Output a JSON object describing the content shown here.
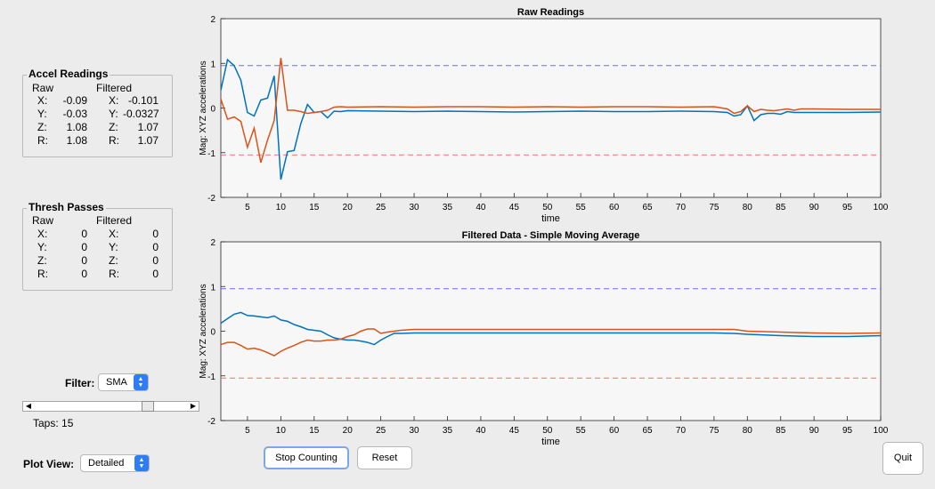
{
  "accel_panel": {
    "title": "Accel Readings",
    "raw_header": "Raw",
    "filtered_header": "Filtered",
    "rows": [
      {
        "label": "X:",
        "raw": "-0.09",
        "flabel": "X:",
        "filtered": "-0.101"
      },
      {
        "label": "Y:",
        "raw": "-0.03",
        "flabel": "Y:",
        "filtered": "-0.0327"
      },
      {
        "label": "Z:",
        "raw": "1.08",
        "flabel": "Z:",
        "filtered": "1.07"
      },
      {
        "label": "R:",
        "raw": "1.08",
        "flabel": "R:",
        "filtered": "1.07"
      }
    ]
  },
  "thresh_panel": {
    "title": "Thresh Passes",
    "raw_header": "Raw",
    "filtered_header": "Filtered",
    "rows": [
      {
        "label": "X:",
        "raw": "0",
        "flabel": "X:",
        "filtered": "0"
      },
      {
        "label": "Y:",
        "raw": "0",
        "flabel": "Y:",
        "filtered": "0"
      },
      {
        "label": "Z:",
        "raw": "0",
        "flabel": "Z:",
        "filtered": "0"
      },
      {
        "label": "R:",
        "raw": "0",
        "flabel": "R:",
        "filtered": "0"
      }
    ]
  },
  "filter": {
    "label": "Filter:",
    "value": "SMA"
  },
  "taps": {
    "label": "Taps: 15",
    "value": 15,
    "slider_fraction": 0.75
  },
  "plot_view": {
    "label": "Plot View:",
    "value": "Detailed"
  },
  "buttons": {
    "stop": "Stop Counting",
    "reset": "Reset",
    "quit": "Quit"
  },
  "colors": {
    "blue": "#0072bd",
    "orange": "#d95319",
    "upper_thresh": "#6b6bff",
    "lower_thresh": "#ff6b6b",
    "plot_bg": "#f7f7f7"
  },
  "chart_data": [
    {
      "type": "line",
      "title": "Raw Readings",
      "xlabel": "time",
      "ylabel": "Mag: XYZ accelerations",
      "xlim": [
        1,
        100
      ],
      "ylim": [
        -2,
        2
      ],
      "xticks": [
        5,
        10,
        15,
        20,
        25,
        30,
        35,
        40,
        45,
        50,
        55,
        60,
        65,
        70,
        75,
        80,
        85,
        90,
        95,
        100
      ],
      "yticks": [
        -2,
        -1,
        0,
        1,
        2
      ],
      "thresholds": [
        0.95,
        -1.05
      ],
      "series": [
        {
          "color": "#0072bd",
          "x": [
            1,
            2,
            3,
            4,
            5,
            6,
            7,
            8,
            9,
            10,
            11,
            12,
            13,
            14,
            15,
            16,
            17,
            18,
            19,
            20,
            25,
            30,
            35,
            40,
            45,
            50,
            55,
            60,
            65,
            70,
            75,
            77,
            78,
            79,
            80,
            81,
            82,
            83,
            84,
            85,
            86,
            87,
            88,
            90,
            95,
            100
          ],
          "y": [
            0.4,
            1.08,
            0.95,
            0.62,
            -0.1,
            -0.18,
            0.18,
            0.22,
            0.72,
            -1.6,
            -0.98,
            -0.95,
            -0.35,
            0.08,
            -0.1,
            -0.08,
            -0.22,
            -0.07,
            -0.08,
            -0.06,
            -0.07,
            -0.08,
            -0.07,
            -0.08,
            -0.09,
            -0.08,
            -0.07,
            -0.08,
            -0.08,
            -0.07,
            -0.08,
            -0.1,
            -0.18,
            -0.15,
            0.05,
            -0.28,
            -0.15,
            -0.12,
            -0.12,
            -0.14,
            -0.08,
            -0.1,
            -0.1,
            -0.1,
            -0.1,
            -0.09
          ]
        },
        {
          "color": "#d95319",
          "x": [
            1,
            2,
            3,
            4,
            5,
            6,
            7,
            8,
            9,
            10,
            11,
            12,
            13,
            14,
            15,
            16,
            17,
            18,
            19,
            20,
            25,
            30,
            35,
            40,
            45,
            50,
            55,
            60,
            65,
            70,
            75,
            77,
            78,
            79,
            80,
            81,
            82,
            83,
            84,
            85,
            86,
            87,
            88,
            90,
            95,
            100
          ],
          "y": [
            0.2,
            -0.25,
            -0.2,
            -0.3,
            -0.88,
            -0.45,
            -1.22,
            -0.72,
            -0.28,
            1.12,
            -0.05,
            -0.05,
            -0.08,
            -0.12,
            -0.1,
            -0.08,
            -0.05,
            0.02,
            0.03,
            0.02,
            0.03,
            0.02,
            0.03,
            0.03,
            0.02,
            0.03,
            0.02,
            0.03,
            0.03,
            0.02,
            0.03,
            -0.02,
            -0.12,
            -0.08,
            0.05,
            -0.08,
            -0.03,
            -0.05,
            -0.06,
            -0.04,
            -0.02,
            -0.05,
            -0.02,
            -0.02,
            -0.03,
            -0.03
          ]
        }
      ]
    },
    {
      "type": "line",
      "title": "Filtered Data - Simple Moving Average",
      "xlabel": "time",
      "ylabel": "Mag: XYZ accelerations",
      "xlim": [
        1,
        100
      ],
      "ylim": [
        -2,
        2
      ],
      "xticks": [
        5,
        10,
        15,
        20,
        25,
        30,
        35,
        40,
        45,
        50,
        55,
        60,
        65,
        70,
        75,
        80,
        85,
        90,
        95,
        100
      ],
      "yticks": [
        -2,
        -1,
        0,
        1,
        2
      ],
      "thresholds": [
        0.95,
        -1.05
      ],
      "series": [
        {
          "color": "#0072bd",
          "x": [
            1,
            2,
            3,
            4,
            5,
            6,
            7,
            8,
            9,
            10,
            11,
            12,
            13,
            14,
            15,
            16,
            17,
            18,
            19,
            20,
            21,
            22,
            23,
            24,
            25,
            26,
            27,
            28,
            30,
            35,
            40,
            50,
            60,
            70,
            75,
            78,
            80,
            85,
            90,
            95,
            100
          ],
          "y": [
            0.18,
            0.28,
            0.38,
            0.42,
            0.35,
            0.34,
            0.32,
            0.3,
            0.34,
            0.25,
            0.22,
            0.15,
            0.1,
            0.04,
            0.02,
            0.0,
            -0.08,
            -0.15,
            -0.18,
            -0.2,
            -0.2,
            -0.22,
            -0.25,
            -0.3,
            -0.2,
            -0.12,
            -0.05,
            -0.05,
            -0.04,
            -0.04,
            -0.04,
            -0.04,
            -0.04,
            -0.04,
            -0.04,
            -0.05,
            -0.07,
            -0.1,
            -0.12,
            -0.12,
            -0.1
          ]
        },
        {
          "color": "#d95319",
          "x": [
            1,
            2,
            3,
            4,
            5,
            6,
            7,
            8,
            9,
            10,
            11,
            12,
            13,
            14,
            15,
            16,
            17,
            18,
            19,
            20,
            21,
            22,
            23,
            24,
            25,
            26,
            27,
            28,
            30,
            35,
            40,
            50,
            60,
            70,
            75,
            78,
            80,
            85,
            90,
            95,
            100
          ],
          "y": [
            -0.3,
            -0.25,
            -0.25,
            -0.32,
            -0.4,
            -0.38,
            -0.42,
            -0.48,
            -0.55,
            -0.45,
            -0.38,
            -0.32,
            -0.25,
            -0.2,
            -0.22,
            -0.22,
            -0.2,
            -0.2,
            -0.18,
            -0.12,
            -0.08,
            0.0,
            0.05,
            0.05,
            -0.05,
            -0.02,
            0.0,
            0.02,
            0.04,
            0.04,
            0.04,
            0.04,
            0.04,
            0.04,
            0.04,
            0.04,
            0.0,
            -0.02,
            -0.04,
            -0.05,
            -0.04
          ]
        }
      ]
    }
  ]
}
